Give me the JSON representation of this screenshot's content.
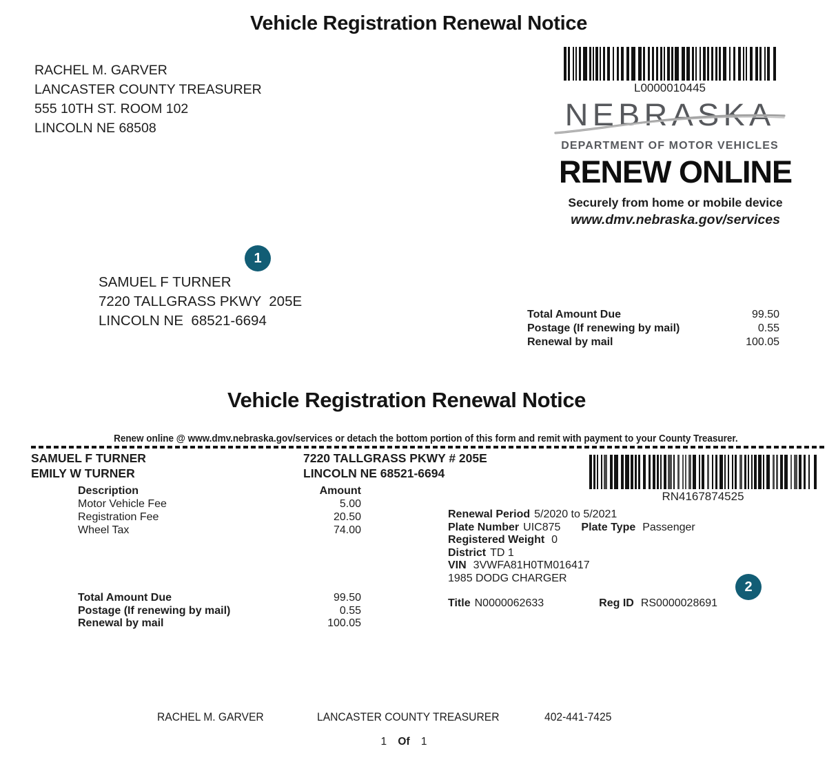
{
  "page": {
    "title": "Vehicle Registration Renewal Notice"
  },
  "treasurer": {
    "name": "RACHEL M. GARVER",
    "office": "LANCASTER COUNTY TREASURER",
    "address1": "555 10TH ST. ROOM 102",
    "address2": "LINCOLN NE 68508",
    "phone": "402-441-7425"
  },
  "dmv": {
    "barcode_label": "L0000010445",
    "state": "NEBRASKA",
    "department": "DEPARTMENT OF MOTOR VEHICLES",
    "renew_online": "RENEW ONLINE",
    "tagline": "Securely from home or mobile device",
    "website": "www.dmv.nebraska.gov/services"
  },
  "callouts": {
    "one": "1",
    "two": "2",
    "color": "#125d75"
  },
  "mail_to": {
    "name": "SAMUEL F TURNER",
    "address1": "7220 TALLGRASS PKWY  205E",
    "address2": "LINCOLN NE  68521-6694"
  },
  "totals": {
    "total_due_label": "Total Amount Due",
    "total_due": "99.50",
    "postage_label": "Postage (If renewing by mail)",
    "postage": "0.55",
    "renewal_label": "Renewal by mail",
    "renewal": "100.05"
  },
  "detach_note": "Renew online @ www.dmv.nebraska.gov/services or detach the bottom portion of this form and remit with payment to your County Treasurer.",
  "registrants": {
    "name1": "SAMUEL F TURNER",
    "name2": "EMILY W TURNER",
    "address1": "7220 TALLGRASS PKWY # 205E",
    "address2": "LINCOLN NE 68521-6694"
  },
  "stub": {
    "barcode_label": "RN4167874525"
  },
  "fees": {
    "description_header": "Description",
    "amount_header": "Amount",
    "rows": [
      {
        "description": "Motor Vehicle Fee",
        "amount": "5.00"
      },
      {
        "description": "Registration Fee",
        "amount": "20.50"
      },
      {
        "description": "Wheel Tax",
        "amount": "74.00"
      }
    ]
  },
  "vehicle": {
    "renewal_period_label": "Renewal Period",
    "renewal_period": "5/2020 to 5/2021",
    "plate_number_label": "Plate Number",
    "plate_number": "UIC875",
    "plate_type_label": "Plate Type",
    "plate_type": "Passenger",
    "registered_weight_label": "Registered Weight",
    "registered_weight": "0",
    "district_label": "District",
    "district": "TD 1",
    "vin_label": "VIN",
    "vin": "3VWFA81H0TM016417",
    "year_make_model": "1985 DODG CHARGER",
    "title_label": "Title",
    "title_number": "N0000062633",
    "reg_id_label": "Reg ID",
    "reg_id": "RS0000028691"
  },
  "footer": {
    "page_current": "1",
    "page_of": "Of",
    "page_total": "1"
  }
}
